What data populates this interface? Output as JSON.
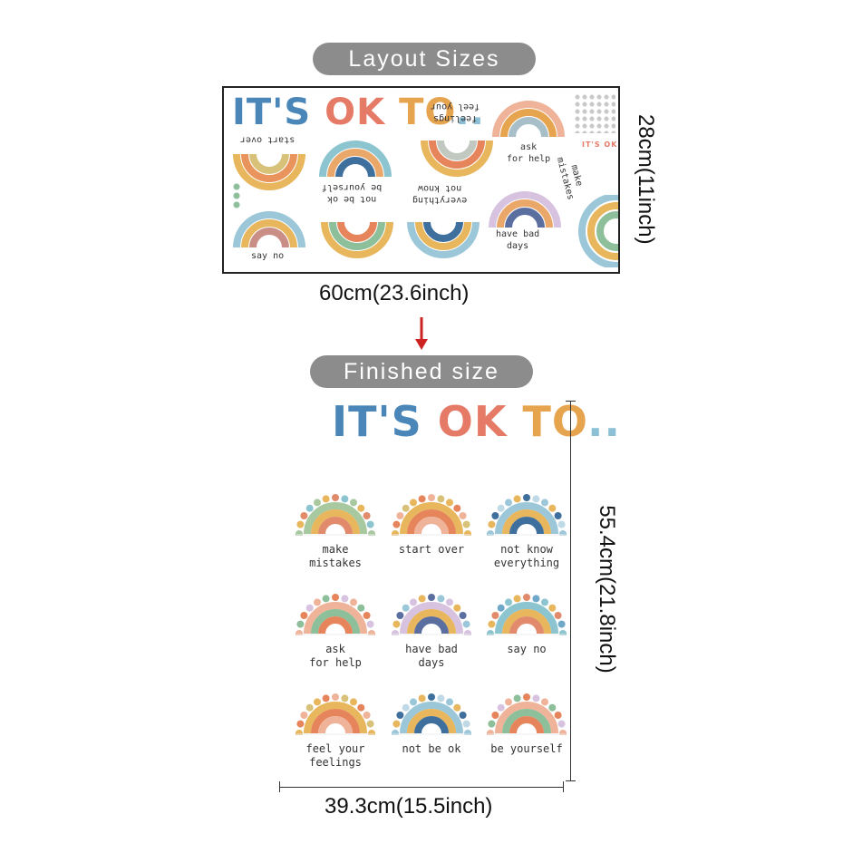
{
  "layout_label": "Layout Sizes",
  "finished_label": "Finished size",
  "layout_width": "60cm(23.6inch)",
  "layout_height": "28cm(11inch)",
  "finished_width": "39.3cm(15.5inch)",
  "finished_height": "55.4cm(21.8inch)",
  "title": {
    "its": "IT'S",
    "ok": "OK",
    "to": "TO",
    "dots": ".."
  },
  "grid": [
    {
      "label": "make mistakes",
      "line1": "make",
      "line2": "mistakes",
      "style": "sage"
    },
    {
      "label": "start over",
      "line1": "start over",
      "line2": "",
      "style": "orange"
    },
    {
      "label": "not know everything",
      "line1": "not know",
      "line2": "everything",
      "style": "blue"
    },
    {
      "label": "ask for help",
      "line1": "ask",
      "line2": "for help",
      "style": "pink"
    },
    {
      "label": "have bad days",
      "line1": "have bad",
      "line2": "days",
      "style": "lavender"
    },
    {
      "label": "say no",
      "line1": "say no",
      "line2": "",
      "style": "teal"
    },
    {
      "label": "feel your feelings",
      "line1": "feel your",
      "line2": "feelings",
      "style": "orange"
    },
    {
      "label": "not be ok",
      "line1": "not be ok",
      "line2": "",
      "style": "blue"
    },
    {
      "label": "be yourself",
      "line1": "be yourself",
      "line2": "",
      "style": "pink"
    }
  ],
  "sheet_labels": {
    "start_over": "start over",
    "feel_1": "feel your",
    "feel_2": "feelings",
    "ask_1": "ask",
    "ask_2": "for help",
    "make_1": "make",
    "make_2": "mistakes",
    "be_yourself": "be yourself",
    "not_be_ok": "not be ok",
    "not_know_1": "not know",
    "not_know_2": "everything",
    "have_bad_1": "have bad",
    "have_bad_2": "days",
    "say_no": "say no",
    "mini_title": "IT'S OK TO"
  },
  "colors": {
    "pill": "#8c8c8c",
    "arrow": "#cc2222",
    "title_i": "#4a86b8",
    "title_t": "#6fa8c9",
    "title_apos": "#e08a5a",
    "title_s": "#9cc7d9",
    "title_o": "#e57a66",
    "title_k": "#e8a86a",
    "title_to": "#e6a44f",
    "title_dots": "#8cc0d6"
  }
}
